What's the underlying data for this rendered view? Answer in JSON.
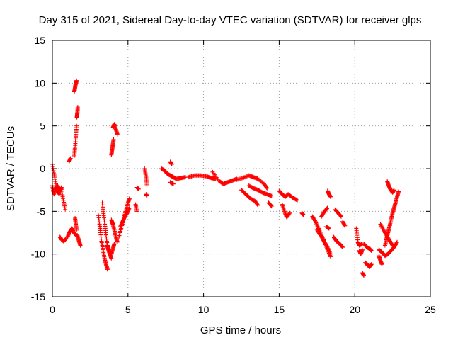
{
  "chart_data": {
    "type": "scatter",
    "title": "Day 315 of 2021, Sidereal Day-to-day VTEC variation (SDTVAR) for receiver glps",
    "xlabel": "GPS time / hours",
    "ylabel": "SDTVAR / TECUs",
    "xlim": [
      0,
      25
    ],
    "ylim": [
      -15,
      15
    ],
    "xticks": [
      0,
      5,
      10,
      15,
      20,
      25
    ],
    "yticks": [
      -15,
      -10,
      -5,
      0,
      5,
      10,
      15
    ],
    "xtick_labels": [
      "0",
      "5",
      "10",
      "15",
      "20",
      "25"
    ],
    "ytick_labels": [
      "-15",
      "-10",
      "-5",
      "0",
      "5",
      "10",
      "15"
    ],
    "grid": true,
    "marker": "+",
    "color": "#ff0000",
    "series": [
      {
        "name": "SDTVAR",
        "segments": [
          {
            "x": [
              0.0,
              0.15,
              0.3,
              0.45,
              0.6,
              0.7,
              0.85
            ],
            "y": [
              0.5,
              -1.0,
              -2.5,
              -3.0,
              -2.2,
              -3.5,
              -4.8
            ]
          },
          {
            "x": [
              0.0,
              0.1,
              0.2,
              0.35,
              0.5
            ],
            "y": [
              -2.0,
              -3.0,
              -2.4,
              -2.0,
              -2.6
            ]
          },
          {
            "x": [
              0.5,
              0.6,
              0.75,
              0.9
            ],
            "y": [
              -8.0,
              -8.3,
              -8.5,
              -8.2
            ]
          },
          {
            "x": [
              1.0,
              1.15,
              1.3,
              1.45,
              1.6
            ],
            "y": [
              -8.0,
              -7.4,
              -7.0,
              -7.6,
              -7.8
            ]
          },
          {
            "x": [
              1.1,
              1.2
            ],
            "y": [
              0.8,
              1.2
            ]
          },
          {
            "x": [
              1.45,
              1.5,
              1.55,
              1.6
            ],
            "y": [
              1.5,
              2.5,
              3.8,
              5.0
            ]
          },
          {
            "x": [
              1.62,
              1.65,
              1.68
            ],
            "y": [
              6.0,
              6.5,
              7.2
            ]
          },
          {
            "x": [
              1.45,
              1.5,
              1.55,
              1.6
            ],
            "y": [
              9.0,
              9.5,
              10.0,
              10.3
            ]
          },
          {
            "x": [
              1.5,
              1.55,
              1.6
            ],
            "y": [
              -5.8,
              -6.5,
              -7.2
            ]
          },
          {
            "x": [
              1.65,
              1.75,
              1.85
            ],
            "y": [
              -7.8,
              -8.4,
              -9.0
            ]
          },
          {
            "x": [
              3.05,
              3.15,
              3.25,
              3.35,
              3.45,
              3.55,
              3.65
            ],
            "y": [
              -5.5,
              -7.0,
              -8.5,
              -9.5,
              -10.5,
              -11.2,
              -11.8
            ]
          },
          {
            "x": [
              3.3,
              3.4,
              3.5,
              3.6,
              3.7,
              3.8,
              3.9
            ],
            "y": [
              -4.0,
              -5.5,
              -7.0,
              -8.5,
              -9.5,
              -10.0,
              -10.5
            ]
          },
          {
            "x": [
              3.6,
              3.75,
              3.9,
              4.0,
              4.1
            ],
            "y": [
              -9.0,
              -9.6,
              -10.0,
              -9.4,
              -8.8
            ]
          },
          {
            "x": [
              3.9,
              4.0,
              4.1,
              4.2,
              4.3
            ],
            "y": [
              -6.0,
              -6.5,
              -7.2,
              -8.0,
              -8.6
            ]
          },
          {
            "x": [
              4.4,
              4.55,
              4.7,
              4.85,
              5.0,
              5.1
            ],
            "y": [
              -8.0,
              -7.0,
              -6.0,
              -5.0,
              -4.0,
              -3.5
            ]
          },
          {
            "x": [
              4.5,
              4.65,
              4.8,
              4.95,
              5.1
            ],
            "y": [
              -6.8,
              -6.2,
              -5.6,
              -5.2,
              -4.6
            ]
          },
          {
            "x": [
              3.9,
              3.95,
              4.0,
              4.05
            ],
            "y": [
              1.6,
              2.2,
              2.8,
              3.4
            ]
          },
          {
            "x": [
              4.0,
              4.1,
              4.2,
              4.3
            ],
            "y": [
              4.8,
              5.2,
              4.6,
              4.0
            ]
          },
          {
            "x": [
              5.5,
              5.6
            ],
            "y": [
              -4.2,
              -5.0
            ]
          },
          {
            "x": [
              5.6,
              5.7
            ],
            "y": [
              -2.2,
              -2.4
            ]
          },
          {
            "x": [
              6.1,
              6.2,
              6.25
            ],
            "y": [
              0.0,
              -1.0,
              -2.0
            ]
          },
          {
            "x": [
              6.2,
              6.25
            ],
            "y": [
              -3.0,
              -3.2
            ]
          },
          {
            "x": [
              7.2,
              7.4,
              7.6,
              7.8,
              8.0,
              8.2,
              8.5,
              8.8
            ],
            "y": [
              0.0,
              -0.2,
              -0.6,
              -0.8,
              -1.0,
              -1.2,
              -1.1,
              -1.0
            ]
          },
          {
            "x": [
              7.8,
              7.9
            ],
            "y": [
              0.8,
              0.5
            ]
          },
          {
            "x": [
              7.8,
              8.0
            ],
            "y": [
              -1.6,
              -1.8
            ]
          },
          {
            "x": [
              9.0,
              9.4,
              9.8,
              10.2,
              10.5,
              10.8
            ],
            "y": [
              -1.0,
              -0.8,
              -0.8,
              -0.9,
              -1.1,
              -1.2
            ]
          },
          {
            "x": [
              10.6,
              11.0,
              11.3,
              11.6,
              11.9,
              12.2
            ],
            "y": [
              -0.4,
              -1.4,
              -1.8,
              -1.6,
              -1.4,
              -1.2
            ]
          },
          {
            "x": [
              12.2,
              12.6,
              13.0,
              13.3,
              13.6,
              14.0,
              14.2
            ],
            "y": [
              -1.3,
              -1.1,
              -0.8,
              -1.0,
              -1.2,
              -1.8,
              -2.3
            ]
          },
          {
            "x": [
              12.5,
              12.8,
              13.1,
              13.4,
              13.6
            ],
            "y": [
              -2.5,
              -3.0,
              -3.5,
              -3.8,
              -4.3
            ]
          },
          {
            "x": [
              13.0,
              13.3,
              13.6,
              13.9,
              14.2,
              14.5
            ],
            "y": [
              -2.0,
              -2.3,
              -2.5,
              -2.8,
              -3.0,
              -3.2
            ]
          },
          {
            "x": [
              14.3,
              14.5
            ],
            "y": [
              -4.0,
              -4.4
            ]
          },
          {
            "x": [
              15.0,
              15.2,
              15.4,
              15.6,
              15.9,
              16.2
            ],
            "y": [
              -2.6,
              -3.0,
              -3.3,
              -3.0,
              -3.4,
              -3.7
            ]
          },
          {
            "x": [
              15.2,
              15.35,
              15.5,
              15.7
            ],
            "y": [
              -4.2,
              -5.0,
              -5.7,
              -5.2
            ]
          },
          {
            "x": [
              16.5,
              16.6
            ],
            "y": [
              -5.2,
              -5.4
            ]
          },
          {
            "x": [
              17.2,
              17.4,
              17.6,
              17.8,
              18.0,
              18.2,
              18.4
            ],
            "y": [
              -5.6,
              -6.2,
              -7.0,
              -7.8,
              -8.6,
              -9.2,
              -10.0
            ]
          },
          {
            "x": [
              17.5,
              17.8,
              18.0,
              18.2,
              18.4
            ],
            "y": [
              -7.2,
              -8.0,
              -8.6,
              -9.5,
              -10.3
            ]
          },
          {
            "x": [
              17.8,
              18.0,
              18.2
            ],
            "y": [
              -5.6,
              -5.0,
              -4.6
            ]
          },
          {
            "x": [
              18.1,
              18.3
            ],
            "y": [
              -6.8,
              -7.0
            ]
          },
          {
            "x": [
              18.2,
              18.3,
              18.4
            ],
            "y": [
              -2.6,
              -3.0,
              -3.3
            ]
          },
          {
            "x": [
              18.6,
              18.8,
              19.0,
              19.2
            ],
            "y": [
              -8.0,
              -8.5,
              -8.8,
              -9.2
            ]
          },
          {
            "x": [
              18.7,
              18.9,
              19.1
            ],
            "y": [
              -4.8,
              -5.2,
              -5.6
            ]
          },
          {
            "x": [
              19.2,
              19.35
            ],
            "y": [
              -6.2,
              -6.7
            ]
          },
          {
            "x": [
              20.1,
              20.2,
              20.3,
              20.5
            ],
            "y": [
              -7.0,
              -8.6,
              -9.0,
              -8.8
            ]
          },
          {
            "x": [
              20.3,
              20.4,
              20.5
            ],
            "y": [
              -9.6,
              -10.0,
              -9.5
            ]
          },
          {
            "x": [
              20.6,
              20.8,
              21.0,
              21.1
            ],
            "y": [
              -8.8,
              -9.2,
              -9.4,
              -9.6
            ]
          },
          {
            "x": [
              20.5,
              20.6
            ],
            "y": [
              -12.2,
              -12.5
            ]
          },
          {
            "x": [
              20.7,
              20.85,
              21.0,
              21.1
            ],
            "y": [
              -11.0,
              -11.3,
              -11.5,
              -11.2
            ]
          },
          {
            "x": [
              21.6,
              21.7,
              21.8
            ],
            "y": [
              -10.2,
              -10.8,
              -11.2
            ]
          },
          {
            "x": [
              21.6,
              21.8,
              22.0,
              22.2,
              22.4,
              22.6,
              22.8
            ],
            "y": [
              -9.5,
              -9.8,
              -10.2,
              -10.0,
              -9.6,
              -9.2,
              -8.6
            ]
          },
          {
            "x": [
              21.7,
              21.9,
              22.1,
              22.3,
              22.5
            ],
            "y": [
              -6.5,
              -7.2,
              -7.8,
              -8.4,
              -9.0
            ]
          },
          {
            "x": [
              22.0,
              22.1,
              22.2,
              22.3,
              22.4,
              22.5,
              22.6,
              22.7,
              22.8,
              22.9
            ],
            "y": [
              -9.0,
              -8.2,
              -7.5,
              -6.8,
              -6.0,
              -5.2,
              -4.6,
              -4.0,
              -3.3,
              -2.7
            ]
          },
          {
            "x": [
              22.15,
              22.25,
              22.35,
              22.5,
              22.6
            ],
            "y": [
              -1.5,
              -2.0,
              -2.4,
              -2.8,
              -2.5
            ]
          }
        ]
      }
    ]
  }
}
